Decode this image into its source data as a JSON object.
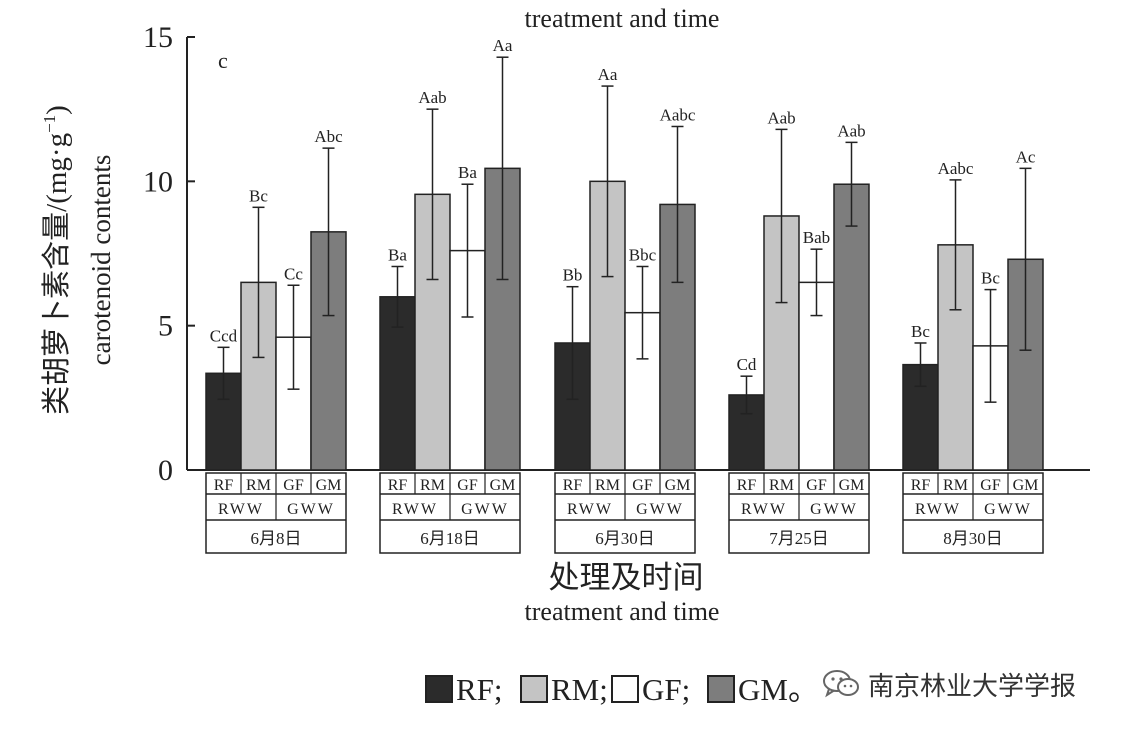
{
  "chart_data": {
    "type": "bar",
    "top_caption": "treatment and time",
    "panel_label": "c",
    "ylabel_cn": "类胡萝卜素含量/(mg·g",
    "ylabel_sup": "−1",
    "ylabel_close": ")",
    "ylabel_en": "carotenoid contents",
    "xlabel_cn": "处理及时间",
    "xlabel_en": "treatment and time",
    "ylim": [
      0,
      15
    ],
    "yticks": [
      "0",
      "5",
      "10",
      "15"
    ],
    "groups": [
      "6月8日",
      "6月18日",
      "6月30日",
      "7月25日",
      "8月30日"
    ],
    "series_labels": [
      "RF",
      "RM",
      "GF",
      "GM"
    ],
    "water_labels": [
      "RWW",
      "GWW"
    ],
    "series": [
      {
        "name": "RF",
        "color": "#2b2b2b",
        "values": [
          3.35,
          6.0,
          4.4,
          2.6,
          3.65
        ],
        "errors": [
          0.9,
          1.05,
          1.95,
          0.65,
          0.75
        ],
        "letters": [
          "Ccd",
          "Ba",
          "Bb",
          "Cd",
          "Bc"
        ]
      },
      {
        "name": "RM",
        "color": "#c4c4c4",
        "values": [
          6.5,
          9.55,
          10.0,
          8.8,
          7.8
        ],
        "errors": [
          2.6,
          2.95,
          3.3,
          3.0,
          2.25
        ],
        "letters": [
          "Bc",
          "Aab",
          "Aa",
          "Aab",
          "Aabc"
        ]
      },
      {
        "name": "GF",
        "color": "#ffffff",
        "values": [
          4.6,
          7.6,
          5.45,
          6.5,
          4.3
        ],
        "errors": [
          1.8,
          2.3,
          1.6,
          1.15,
          1.95
        ],
        "letters": [
          "Cc",
          "Ba",
          "Bbc",
          "Bab",
          "Bc"
        ]
      },
      {
        "name": "GM",
        "color": "#7d7d7d",
        "values": [
          8.25,
          10.45,
          9.2,
          9.9,
          7.3
        ],
        "errors": [
          2.9,
          3.85,
          2.7,
          1.45,
          3.15
        ],
        "letters": [
          "Abc",
          "Aa",
          "Aabc",
          "Aab",
          "Ac"
        ]
      }
    ],
    "legend": {
      "placement": "bottom",
      "items": [
        "RF;",
        "RM;",
        "GF;",
        "GM。"
      ]
    },
    "grid": false
  },
  "watermark": {
    "text": "南京林业大学学报",
    "icon": "wechat-icon"
  }
}
